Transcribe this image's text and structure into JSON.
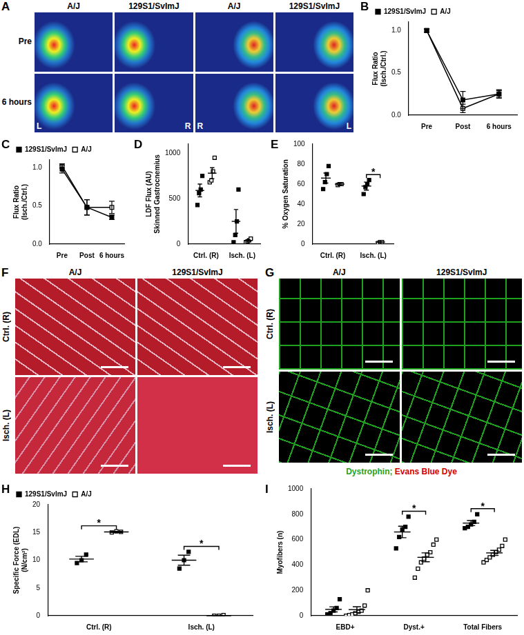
{
  "image_panels": [
    {
      "panel": "A",
      "columns": [
        "A/J",
        "129S1/SvImJ",
        "A/J",
        "129S1/SvImJ"
      ],
      "rows": [
        "Pre",
        "6 hours"
      ],
      "corner_labels": [
        "L",
        "R",
        "R",
        "L"
      ]
    },
    {
      "panel": "F",
      "columns": [
        "A/J",
        "129S1/SvImJ"
      ],
      "rows": [
        "Ctrl. (R)",
        "Isch. (L)"
      ]
    },
    {
      "panel": "G",
      "columns": [
        "A/J",
        "129S1/SvImJ"
      ],
      "rows": [
        "Ctrl. (R)",
        "Isch. (L)"
      ],
      "caption": [
        {
          "text": "Dystrophin;",
          "color": "#1fa31f"
        },
        {
          "text": "Evans Blue Dye",
          "color": "#d40000"
        }
      ]
    }
  ],
  "chart_data": [
    {
      "panel": "B",
      "type": "line",
      "categories": [
        "Pre",
        "Post",
        "6 hours"
      ],
      "y_label": [
        "Flux Ratio",
        "(Isch./Ctrl.)"
      ],
      "ylim": [
        0,
        1.1
      ],
      "yticks": [
        {
          "value": 0,
          "label": "0.0"
        },
        0.5,
        {
          "value": 1,
          "label": "1.0"
        }
      ],
      "grid": false,
      "legend": "top left",
      "series": [
        {
          "name": "129S1/SvImJ",
          "color": "#000000",
          "marker": "square",
          "line_style": "solid",
          "values": [
            1.0,
            0.18,
            0.25
          ],
          "errors": [
            0.02,
            0.1,
            0.05
          ]
        },
        {
          "name": "A/J",
          "color": "#000000",
          "marker": "open square",
          "line_style": "solid",
          "values": [
            1.0,
            0.08,
            0.25
          ],
          "errors": [
            0.02,
            0.05,
            0.04
          ]
        }
      ]
    },
    {
      "panel": "C",
      "type": "line",
      "categories": [
        "Pre",
        "Post",
        "6 hours"
      ],
      "y_label": [
        "Flux Ratio",
        "(Isch./Ctrl.)"
      ],
      "ylim": [
        0,
        1.1
      ],
      "yticks": [
        {
          "value": 0,
          "label": "0.0"
        },
        0.5,
        {
          "value": 1,
          "label": "1.0"
        }
      ],
      "grid": false,
      "legend": "top left",
      "series": [
        {
          "name": "129S1/SvImJ",
          "color": "#000000",
          "marker": "square",
          "line_style": "solid",
          "values": [
            0.98,
            0.48,
            0.35
          ],
          "errors": [
            0.05,
            0.1,
            0.03
          ]
        },
        {
          "name": "A/J",
          "color": "#000000",
          "marker": "open square",
          "line_style": "solid",
          "values": [
            1.02,
            0.48,
            0.48
          ],
          "errors": [
            0.03,
            0.1,
            0.08
          ]
        }
      ]
    },
    {
      "panel": "D",
      "type": "scatter",
      "categories": [
        "Ctrl. (R)",
        "Isch. (L)"
      ],
      "y_label": [
        "LDF Flux (AU)",
        "Skinned Gastrocnemius"
      ],
      "ylim": [
        0,
        1100
      ],
      "yticks": [
        0,
        500,
        1000
      ],
      "grid": false,
      "series": [
        {
          "name": "129S1/SvImJ",
          "color": "#000000",
          "marker": "square",
          "values": [
            [
              430,
              560,
              600,
              750
            ],
            [
              20,
              100,
              250,
              600
            ]
          ],
          "mean": [
            590,
            250
          ],
          "errors": [
            70,
            130
          ]
        },
        {
          "name": "A/J",
          "color": "#000000",
          "marker": "open square",
          "values": [
            [
              680,
              700,
              800,
              950
            ],
            [
              20,
              30,
              40,
              60
            ]
          ],
          "mean": [
            780,
            40
          ],
          "errors": [
            60,
            10
          ]
        }
      ]
    },
    {
      "panel": "E",
      "type": "scatter",
      "categories": [
        "Ctrl. (R)",
        "Isch. (L)"
      ],
      "y_label": "% Oxygen Saturation",
      "ylim": [
        0,
        100
      ],
      "yticks": [
        0,
        20,
        40,
        60,
        80,
        100
      ],
      "grid": false,
      "annotations": [
        {
          "text": "*",
          "category": "Isch. (L)"
        }
      ],
      "series": [
        {
          "name": "129S1/SvImJ",
          "color": "#000000",
          "marker": "square",
          "values": [
            [
              55,
              62,
              70,
              78
            ],
            [
              50,
              57,
              60,
              64
            ]
          ],
          "mean": [
            66,
            58
          ],
          "errors": [
            5,
            4
          ]
        },
        {
          "name": "A/J",
          "color": "#000000",
          "marker": "open square",
          "values": [
            [
              59,
              60,
              60
            ],
            [
              1,
              2,
              2
            ]
          ],
          "mean": [
            60,
            2
          ],
          "errors": [
            1,
            0.5
          ]
        }
      ]
    },
    {
      "panel": "H",
      "type": "scatter",
      "categories": [
        "Ctrl. (R)",
        "Isch. (L)"
      ],
      "y_label": [
        "Specific Force (EDL)",
        "(N/cm²)"
      ],
      "ylim": [
        0,
        20
      ],
      "yticks": [
        0,
        5,
        10,
        15,
        20
      ],
      "grid": false,
      "legend": "top left",
      "annotations": [
        {
          "text": "*",
          "category": "Ctrl. (R)"
        },
        {
          "text": "*",
          "category": "Isch. (L)"
        }
      ],
      "series": [
        {
          "name": "129S1/SvImJ",
          "color": "#000000",
          "marker": "square",
          "values": [
            [
              9.5,
              10,
              11
            ],
            [
              8.5,
              10,
              11.5
            ]
          ],
          "mean": [
            10.2,
            10
          ],
          "errors": [
            0.5,
            0.9
          ]
        },
        {
          "name": "A/J",
          "color": "#000000",
          "marker": "open square",
          "values": [
            [
              15,
              15.2,
              15.1
            ],
            [
              0,
              0,
              0.1
            ]
          ],
          "mean": [
            15.1,
            0
          ],
          "errors": [
            0.1,
            0
          ]
        }
      ]
    },
    {
      "panel": "I",
      "type": "scatter",
      "categories": [
        "EBD+",
        "Dyst.+",
        "Total Fibers"
      ],
      "y_label": "Myofibers (n)",
      "ylim": [
        0,
        1000
      ],
      "yticks": [
        0,
        200,
        400,
        600,
        800,
        1000
      ],
      "grid": false,
      "annotations": [
        {
          "text": "*",
          "category": "Dyst.+"
        },
        {
          "text": "*",
          "category": "Total Fibers"
        }
      ],
      "series": [
        {
          "name": "129S1/SvImJ",
          "color": "#000000",
          "marker": "square",
          "values": [
            [
              10,
              20,
              40,
              60,
              130
            ],
            [
              530,
              620,
              680,
              700,
              780
            ],
            [
              690,
              700,
              720,
              740,
              800
            ]
          ],
          "mean": [
            50,
            660,
            730
          ],
          "errors": [
            20,
            45,
            20
          ]
        },
        {
          "name": "A/J",
          "color": "#000000",
          "marker": "open square",
          "values": [
            [
              0,
              5,
              10,
              20,
              30,
              40,
              80,
              200
            ],
            [
              300,
              370,
              420,
              450,
              480,
              500,
              560,
              600
            ],
            [
              420,
              440,
              460,
              480,
              500,
              520,
              550,
              600
            ]
          ],
          "mean": [
            48,
            460,
            495
          ],
          "errors": [
            23,
            35,
            20
          ]
        }
      ]
    }
  ]
}
